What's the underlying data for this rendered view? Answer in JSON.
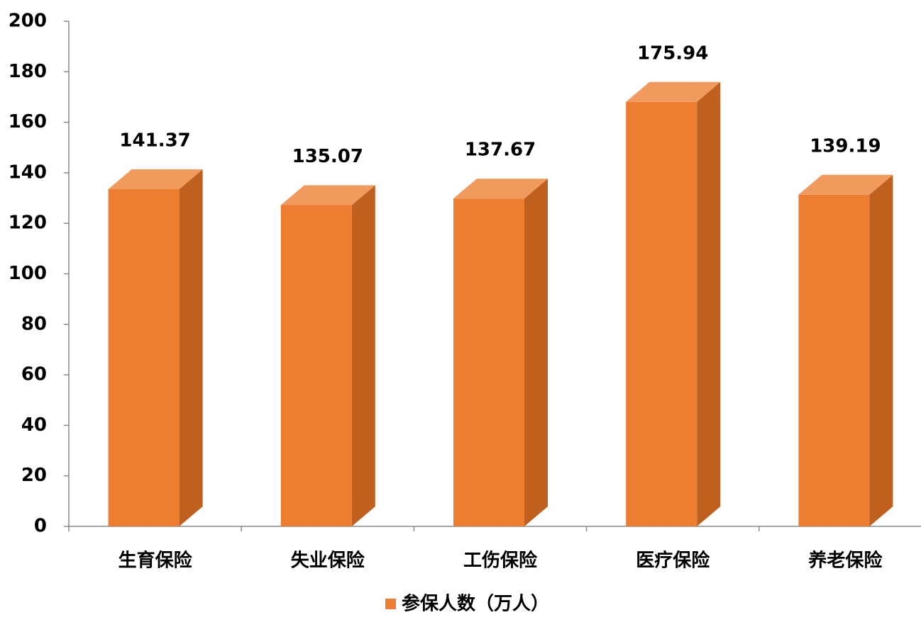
{
  "chart_data": {
    "type": "bar",
    "categories": [
      "生育保险",
      "失业保险",
      "工伤保险",
      "医疗保险",
      "养老保险"
    ],
    "series": [
      {
        "name": "参保人数（万人）",
        "color": "#ED7D31",
        "values": [
          141.37,
          135.07,
          137.67,
          175.94,
          139.19
        ]
      }
    ],
    "ylim": [
      0,
      200
    ],
    "yticks": [
      0,
      20,
      40,
      60,
      80,
      100,
      120,
      140,
      160,
      180,
      200
    ],
    "legend": "bottom"
  }
}
